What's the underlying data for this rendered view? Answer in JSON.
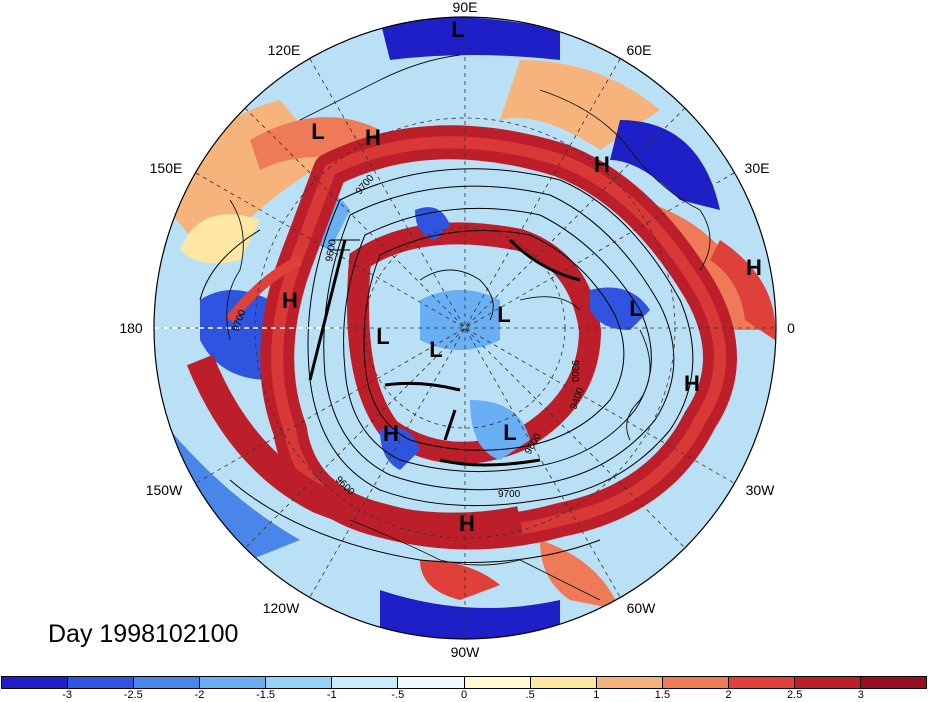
{
  "title": "Day 1998102100",
  "longitude_labels": {
    "e90": "90E",
    "e60": "60E",
    "e120": "120E",
    "e30": "30E",
    "e150": "150E",
    "zero": "0",
    "w180": "180",
    "w30": "30W",
    "w150": "150W",
    "w60": "60W",
    "w120": "120W",
    "w90": "90W"
  },
  "contour_labels": [
    "9600",
    "9700",
    "9300",
    "9400",
    "9600",
    "9700",
    "9600",
    "9700"
  ],
  "pressure_centers": [
    {
      "type": "L"
    },
    {
      "type": "L"
    },
    {
      "type": "H"
    },
    {
      "type": "H"
    },
    {
      "type": "H"
    },
    {
      "type": "H"
    },
    {
      "type": "L"
    },
    {
      "type": "L"
    },
    {
      "type": "L"
    },
    {
      "type": "L"
    },
    {
      "type": "H"
    },
    {
      "type": "H"
    },
    {
      "type": "L"
    },
    {
      "type": "H"
    }
  ],
  "colorbar": {
    "colors": [
      "#1f1fc8",
      "#2f54e0",
      "#4a86ea",
      "#6aaef3",
      "#96d2f8",
      "#c8ecfb",
      "#eefaff",
      "#fff8d2",
      "#fde7a2",
      "#f7b37c",
      "#ef7a58",
      "#e0403a",
      "#bd1f2a",
      "#9a0d1f"
    ],
    "tick_labels": [
      "-3",
      "-2.5",
      "-2",
      "-1.5",
      "-1",
      "-.5",
      "0",
      ".5",
      "1",
      "1.5",
      "2",
      "2.5",
      "3"
    ]
  },
  "legend_colors": {
    "negative": "#1f1fc8",
    "neutral": "#ffffff",
    "positive": "#9a0d1f"
  }
}
